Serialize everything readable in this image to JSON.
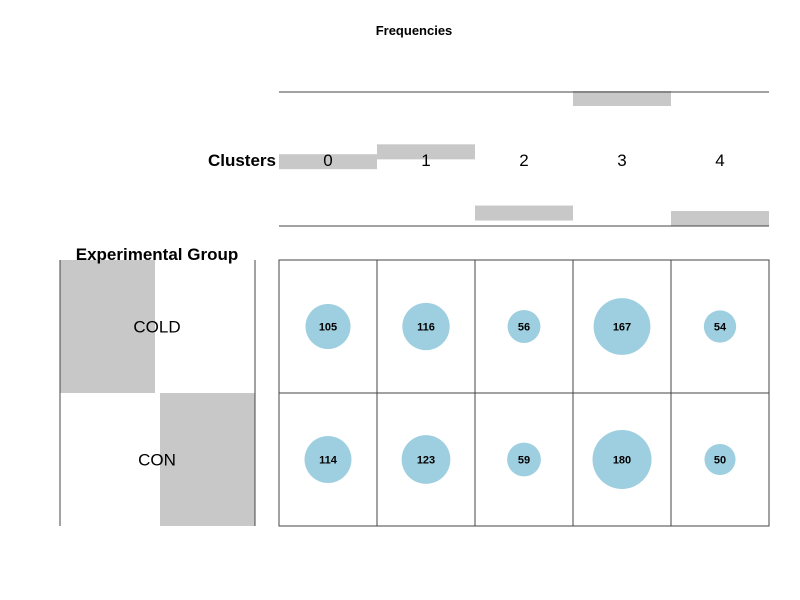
{
  "chart_data": {
    "type": "balloon",
    "title": "Frequencies",
    "column_header": "Clusters",
    "row_header": "Experimental Group",
    "columns": [
      "0",
      "1",
      "2",
      "3",
      "4"
    ],
    "rows": [
      "COLD",
      "CON"
    ],
    "counts": [
      [
        105,
        116,
        56,
        167,
        54
      ],
      [
        114,
        123,
        59,
        180,
        50
      ]
    ],
    "bubble_color": "#9ecfe0",
    "bar_color": "#c8c8c8"
  }
}
